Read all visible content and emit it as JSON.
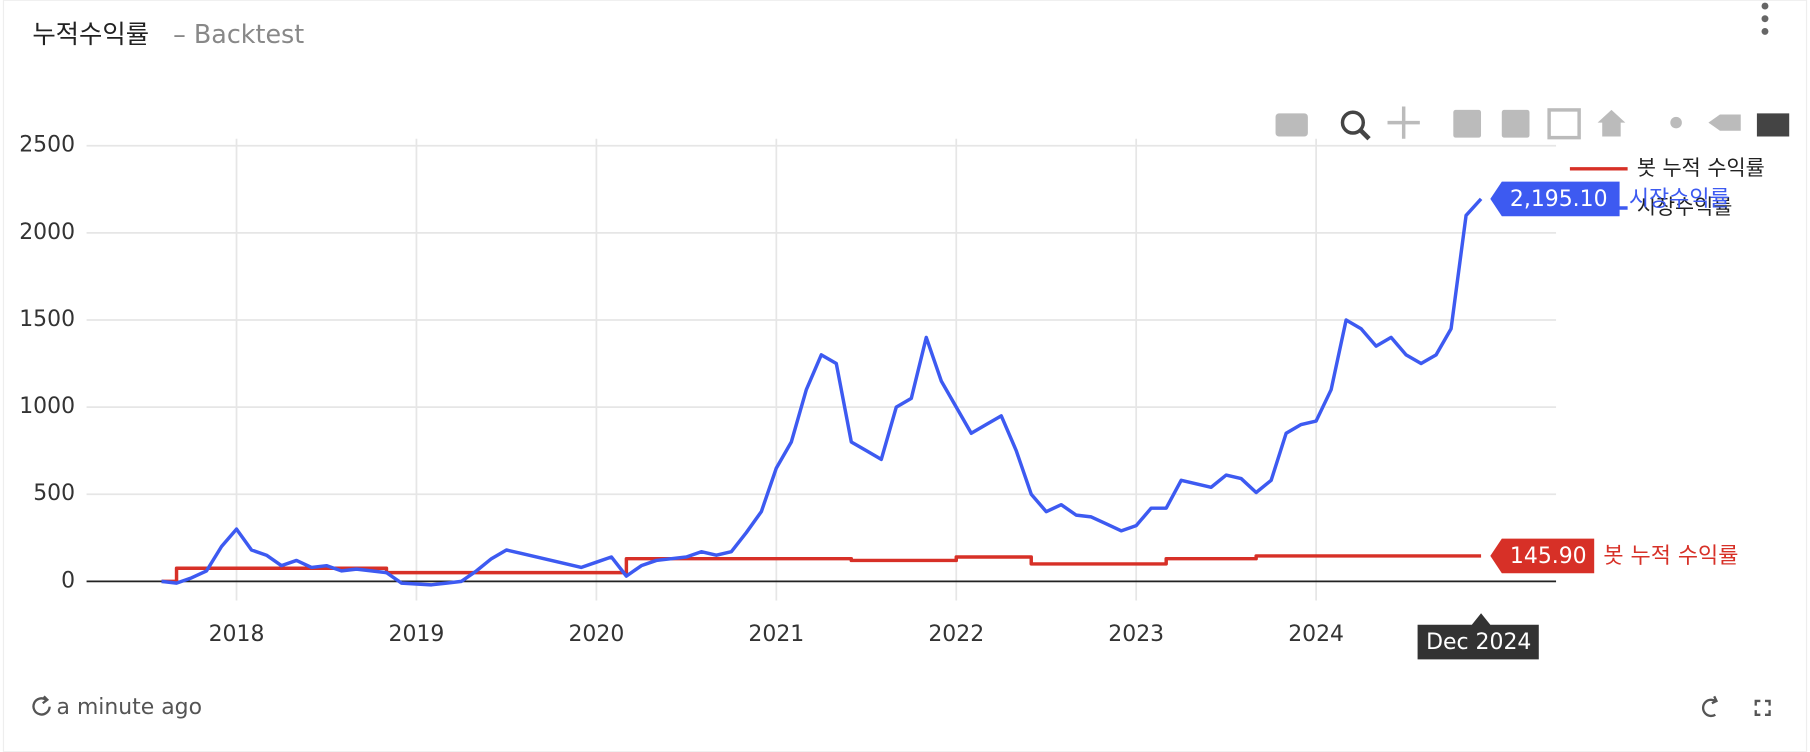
{
  "chart_data": {
    "type": "line",
    "title": "누적수익률",
    "subtitle": "– Backtest",
    "xlim": [
      "2017-03",
      "2025-05"
    ],
    "xticks": [
      {
        "value": "2018-01",
        "label": "2018"
      },
      {
        "value": "2019-01",
        "label": "2019"
      },
      {
        "value": "2020-01",
        "label": "2020"
      },
      {
        "value": "2021-01",
        "label": "2021"
      },
      {
        "value": "2022-01",
        "label": "2022"
      },
      {
        "value": "2023-01",
        "label": "2023"
      },
      {
        "value": "2024-01",
        "label": "2024"
      }
    ],
    "ylim": [
      -110,
      2540
    ],
    "yticks": [
      0,
      500,
      1000,
      1500,
      2000,
      2500
    ],
    "grid": true,
    "series": [
      {
        "name": "봇 누적 수익률",
        "color": "#d73027",
        "step": true,
        "x": [
          "2017-08",
          "2017-09",
          "2018-11",
          "2020-03",
          "2021-06",
          "2022-01",
          "2022-06",
          "2023-03",
          "2023-09",
          "2024-12"
        ],
        "values": [
          0,
          75,
          50,
          130,
          120,
          140,
          100,
          130,
          145.9,
          145.9
        ]
      },
      {
        "name": "시장수익률",
        "color": "#3d5af1",
        "step": false,
        "x": [
          "2017-08",
          "2017-09",
          "2017-10",
          "2017-11",
          "2017-12",
          "2018-01",
          "2018-02",
          "2018-03",
          "2018-04",
          "2018-05",
          "2018-06",
          "2018-07",
          "2018-08",
          "2018-09",
          "2018-10",
          "2018-11",
          "2018-12",
          "2019-01",
          "2019-02",
          "2019-03",
          "2019-04",
          "2019-05",
          "2019-06",
          "2019-07",
          "2019-08",
          "2019-09",
          "2019-10",
          "2019-11",
          "2019-12",
          "2020-01",
          "2020-02",
          "2020-03",
          "2020-04",
          "2020-05",
          "2020-06",
          "2020-07",
          "2020-08",
          "2020-09",
          "2020-10",
          "2020-11",
          "2020-12",
          "2021-01",
          "2021-02",
          "2021-03",
          "2021-04",
          "2021-05",
          "2021-06",
          "2021-07",
          "2021-08",
          "2021-09",
          "2021-10",
          "2021-11",
          "2021-12",
          "2022-01",
          "2022-02",
          "2022-03",
          "2022-04",
          "2022-05",
          "2022-06",
          "2022-07",
          "2022-08",
          "2022-09",
          "2022-10",
          "2022-11",
          "2022-12",
          "2023-01",
          "2023-02",
          "2023-03",
          "2023-04",
          "2023-05",
          "2023-06",
          "2023-07",
          "2023-08",
          "2023-09",
          "2023-10",
          "2023-11",
          "2023-12",
          "2024-01",
          "2024-02",
          "2024-03",
          "2024-04",
          "2024-05",
          "2024-06",
          "2024-07",
          "2024-08",
          "2024-09",
          "2024-10",
          "2024-11",
          "2024-12"
        ],
        "values": [
          0,
          -10,
          20,
          60,
          200,
          300,
          180,
          150,
          90,
          120,
          80,
          90,
          60,
          70,
          60,
          50,
          -10,
          -15,
          -20,
          -10,
          0,
          60,
          130,
          180,
          160,
          140,
          120,
          100,
          80,
          110,
          140,
          30,
          90,
          120,
          130,
          140,
          170,
          150,
          170,
          280,
          400,
          650,
          800,
          1100,
          1300,
          1250,
          800,
          750,
          700,
          1000,
          1050,
          1400,
          1150,
          1000,
          850,
          900,
          950,
          750,
          500,
          400,
          440,
          380,
          370,
          330,
          290,
          320,
          420,
          420,
          580,
          560,
          540,
          610,
          590,
          510,
          580,
          850,
          900,
          920,
          1100,
          1500,
          1450,
          1350,
          1400,
          1300,
          1250,
          1300,
          1450,
          2100,
          2195.1
        ]
      }
    ],
    "hover": {
      "x": {
        "value": "2024-12",
        "label": "Dec 2024"
      },
      "values": [
        145.9,
        2195.1
      ],
      "value_labels": [
        "145.90",
        "2,195.10"
      ]
    }
  },
  "footer_text": "a minute ago"
}
